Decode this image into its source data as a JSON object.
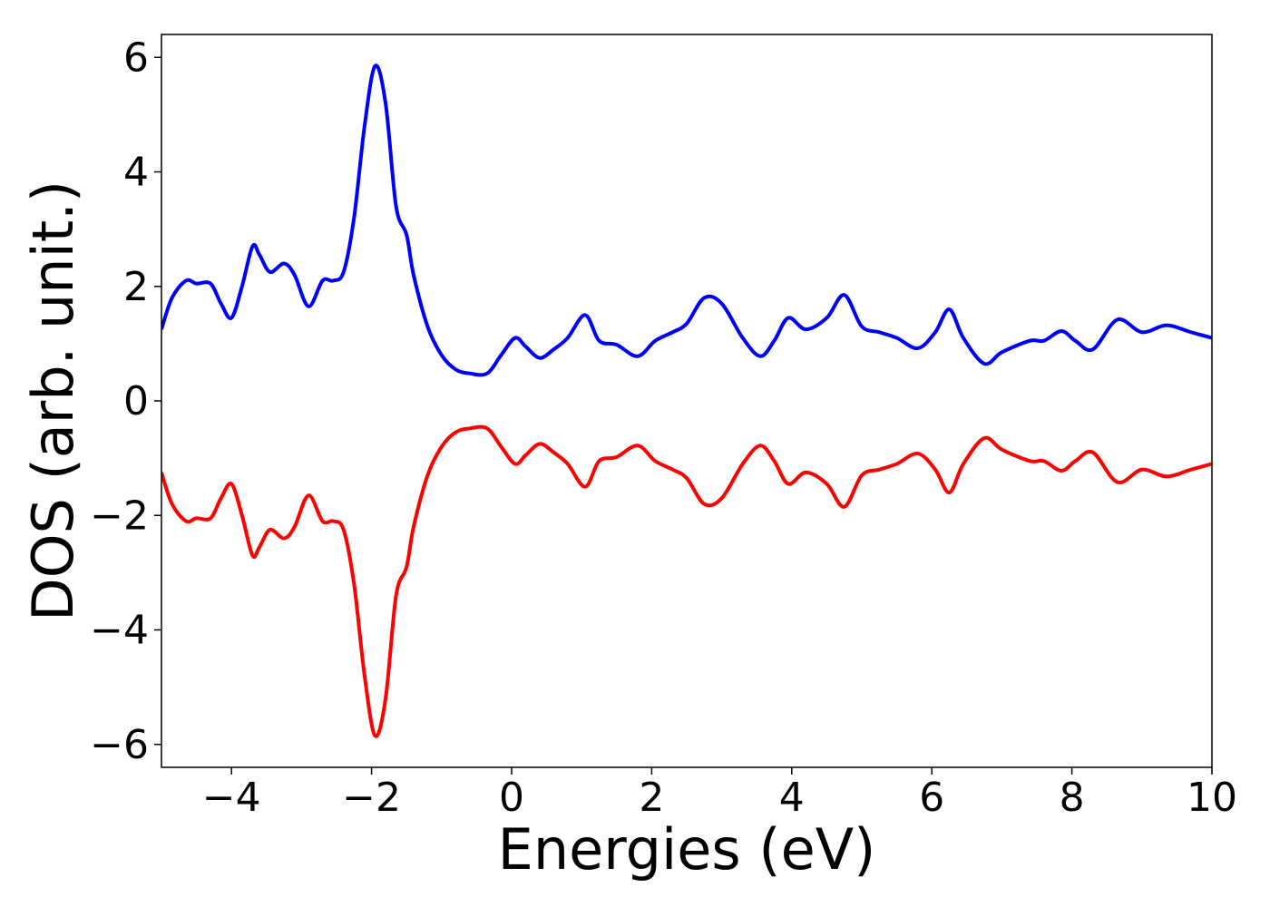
{
  "chart_data": {
    "type": "line",
    "title": "",
    "xlabel": "Energies (eV)",
    "ylabel": "DOS (arb. unit.)",
    "xlim": [
      -5,
      10
    ],
    "ylim": [
      -6.4,
      6.4
    ],
    "grid": false,
    "x_ticks": [
      -4,
      -2,
      0,
      2,
      4,
      6,
      8,
      10
    ],
    "x_tick_labels": [
      "−4",
      "−2",
      "0",
      "2",
      "4",
      "6",
      "8",
      "10"
    ],
    "y_ticks": [
      6,
      4,
      2,
      0,
      -2,
      -4,
      -6
    ],
    "y_tick_labels": [
      "6",
      "4",
      "2",
      "0",
      "−2",
      "−4",
      "−6"
    ],
    "series": [
      {
        "color": "#0000ff",
        "points": [
          [
            -5.0,
            1.25
          ],
          [
            -4.85,
            1.8
          ],
          [
            -4.65,
            2.1
          ],
          [
            -4.5,
            2.05
          ],
          [
            -4.3,
            2.05
          ],
          [
            -4.15,
            1.7
          ],
          [
            -4.0,
            1.45
          ],
          [
            -3.85,
            2.0
          ],
          [
            -3.7,
            2.7
          ],
          [
            -3.6,
            2.55
          ],
          [
            -3.45,
            2.25
          ],
          [
            -3.25,
            2.4
          ],
          [
            -3.1,
            2.2
          ],
          [
            -2.9,
            1.65
          ],
          [
            -2.7,
            2.1
          ],
          [
            -2.55,
            2.1
          ],
          [
            -2.4,
            2.25
          ],
          [
            -2.25,
            3.2
          ],
          [
            -2.1,
            4.8
          ],
          [
            -1.95,
            5.85
          ],
          [
            -1.8,
            5.2
          ],
          [
            -1.65,
            3.4
          ],
          [
            -1.5,
            2.9
          ],
          [
            -1.4,
            2.2
          ],
          [
            -1.2,
            1.3
          ],
          [
            -1.0,
            0.8
          ],
          [
            -0.8,
            0.55
          ],
          [
            -0.6,
            0.48
          ],
          [
            -0.35,
            0.48
          ],
          [
            -0.15,
            0.8
          ],
          [
            0.05,
            1.1
          ],
          [
            0.2,
            0.95
          ],
          [
            0.4,
            0.75
          ],
          [
            0.6,
            0.9
          ],
          [
            0.8,
            1.1
          ],
          [
            1.05,
            1.5
          ],
          [
            1.25,
            1.05
          ],
          [
            1.5,
            0.98
          ],
          [
            1.8,
            0.78
          ],
          [
            2.05,
            1.05
          ],
          [
            2.3,
            1.2
          ],
          [
            2.5,
            1.35
          ],
          [
            2.75,
            1.8
          ],
          [
            3.0,
            1.7
          ],
          [
            3.3,
            1.1
          ],
          [
            3.55,
            0.78
          ],
          [
            3.75,
            1.05
          ],
          [
            3.95,
            1.45
          ],
          [
            4.2,
            1.25
          ],
          [
            4.5,
            1.45
          ],
          [
            4.75,
            1.85
          ],
          [
            5.0,
            1.3
          ],
          [
            5.25,
            1.2
          ],
          [
            5.5,
            1.1
          ],
          [
            5.8,
            0.92
          ],
          [
            6.05,
            1.2
          ],
          [
            6.25,
            1.6
          ],
          [
            6.45,
            1.1
          ],
          [
            6.75,
            0.65
          ],
          [
            7.0,
            0.85
          ],
          [
            7.4,
            1.05
          ],
          [
            7.6,
            1.05
          ],
          [
            7.85,
            1.22
          ],
          [
            8.05,
            1.05
          ],
          [
            8.3,
            0.9
          ],
          [
            8.65,
            1.42
          ],
          [
            9.0,
            1.2
          ],
          [
            9.35,
            1.32
          ],
          [
            9.7,
            1.2
          ],
          [
            10.0,
            1.1
          ]
        ]
      },
      {
        "color": "#ff0000",
        "points": [
          [
            -5.0,
            -1.25
          ],
          [
            -4.85,
            -1.8
          ],
          [
            -4.65,
            -2.1
          ],
          [
            -4.5,
            -2.05
          ],
          [
            -4.3,
            -2.05
          ],
          [
            -4.15,
            -1.7
          ],
          [
            -4.0,
            -1.45
          ],
          [
            -3.85,
            -2.0
          ],
          [
            -3.7,
            -2.7
          ],
          [
            -3.6,
            -2.55
          ],
          [
            -3.45,
            -2.25
          ],
          [
            -3.25,
            -2.4
          ],
          [
            -3.1,
            -2.2
          ],
          [
            -2.9,
            -1.65
          ],
          [
            -2.7,
            -2.1
          ],
          [
            -2.55,
            -2.1
          ],
          [
            -2.4,
            -2.25
          ],
          [
            -2.25,
            -3.2
          ],
          [
            -2.1,
            -4.8
          ],
          [
            -1.95,
            -5.85
          ],
          [
            -1.8,
            -5.2
          ],
          [
            -1.65,
            -3.4
          ],
          [
            -1.5,
            -2.9
          ],
          [
            -1.4,
            -2.2
          ],
          [
            -1.2,
            -1.3
          ],
          [
            -1.0,
            -0.8
          ],
          [
            -0.8,
            -0.55
          ],
          [
            -0.6,
            -0.48
          ],
          [
            -0.35,
            -0.48
          ],
          [
            -0.15,
            -0.8
          ],
          [
            0.05,
            -1.1
          ],
          [
            0.2,
            -0.95
          ],
          [
            0.4,
            -0.75
          ],
          [
            0.6,
            -0.9
          ],
          [
            0.8,
            -1.1
          ],
          [
            1.05,
            -1.5
          ],
          [
            1.25,
            -1.05
          ],
          [
            1.5,
            -0.98
          ],
          [
            1.8,
            -0.78
          ],
          [
            2.05,
            -1.05
          ],
          [
            2.3,
            -1.2
          ],
          [
            2.5,
            -1.35
          ],
          [
            2.75,
            -1.8
          ],
          [
            3.0,
            -1.7
          ],
          [
            3.3,
            -1.1
          ],
          [
            3.55,
            -0.78
          ],
          [
            3.75,
            -1.05
          ],
          [
            3.95,
            -1.45
          ],
          [
            4.2,
            -1.25
          ],
          [
            4.5,
            -1.45
          ],
          [
            4.75,
            -1.85
          ],
          [
            5.0,
            -1.3
          ],
          [
            5.25,
            -1.2
          ],
          [
            5.5,
            -1.1
          ],
          [
            5.8,
            -0.92
          ],
          [
            6.05,
            -1.2
          ],
          [
            6.25,
            -1.6
          ],
          [
            6.45,
            -1.1
          ],
          [
            6.75,
            -0.65
          ],
          [
            7.0,
            -0.85
          ],
          [
            7.4,
            -1.05
          ],
          [
            7.6,
            -1.05
          ],
          [
            7.85,
            -1.22
          ],
          [
            8.05,
            -1.05
          ],
          [
            8.3,
            -0.9
          ],
          [
            8.65,
            -1.42
          ],
          [
            9.0,
            -1.2
          ],
          [
            9.35,
            -1.32
          ],
          [
            9.7,
            -1.2
          ],
          [
            10.0,
            -1.1
          ]
        ]
      }
    ]
  }
}
